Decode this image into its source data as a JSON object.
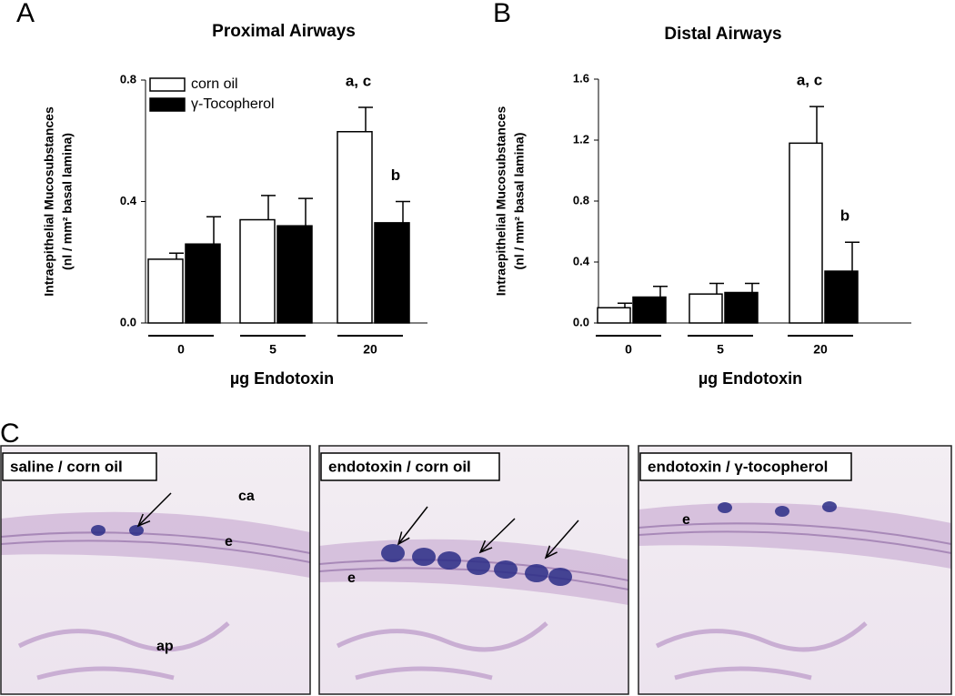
{
  "chart_data": [
    {
      "type": "bar",
      "panel": "A",
      "title": "Proximal Airways",
      "y_label": [
        "Intraepithelial Mucosubstances",
        "(nl / mm² basal lamina)"
      ],
      "x_label": "µg Endotoxin",
      "categories": [
        "0",
        "5",
        "20"
      ],
      "series": [
        {
          "name": "corn oil",
          "color": "#ffffff",
          "values": [
            0.21,
            0.34,
            0.63
          ],
          "errors": [
            0.02,
            0.08,
            0.08
          ],
          "point_labels": [
            null,
            null,
            "a, c"
          ]
        },
        {
          "name": "γ-Tocopherol",
          "color": "#000000",
          "values": [
            0.26,
            0.32,
            0.33
          ],
          "errors": [
            0.09,
            0.09,
            0.07
          ],
          "point_labels": [
            null,
            null,
            "b"
          ]
        }
      ],
      "ylim": [
        0,
        0.8
      ],
      "yticks": [
        {
          "value": 0,
          "label": "0.0"
        },
        0.4,
        0.8
      ],
      "legend": "upper left"
    },
    {
      "type": "bar",
      "panel": "B",
      "title": "Distal Airways",
      "y_label": [
        "Intraepithelial Mucosubstances",
        "(nl / mm² basal lamina)"
      ],
      "x_label": "µg Endotoxin",
      "categories": [
        "0",
        "5",
        "20"
      ],
      "series": [
        {
          "name": "corn oil",
          "color": "#ffffff",
          "values": [
            0.1,
            0.19,
            1.18
          ],
          "errors": [
            0.03,
            0.07,
            0.24
          ],
          "point_labels": [
            null,
            null,
            "a, c"
          ]
        },
        {
          "name": "γ-Tocopherol",
          "color": "#000000",
          "values": [
            0.17,
            0.2,
            0.34
          ],
          "errors": [
            0.07,
            0.06,
            0.19
          ],
          "point_labels": [
            null,
            null,
            "b"
          ]
        }
      ],
      "ylim": [
        0,
        1.6
      ],
      "yticks": [
        {
          "value": 0,
          "label": "0.0"
        },
        0.4,
        0.8,
        1.2,
        1.6
      ],
      "legend": "none"
    }
  ],
  "panel_c": {
    "panel": "C",
    "micrographs": [
      {
        "label": "saline / corn oil",
        "annotations": [
          "ca",
          "e",
          "ap"
        ]
      },
      {
        "label": "endotoxin / corn oil",
        "annotations": [
          "e"
        ]
      },
      {
        "label": "endotoxin / γ-tocopherol",
        "annotations": [
          "e"
        ]
      }
    ]
  }
}
